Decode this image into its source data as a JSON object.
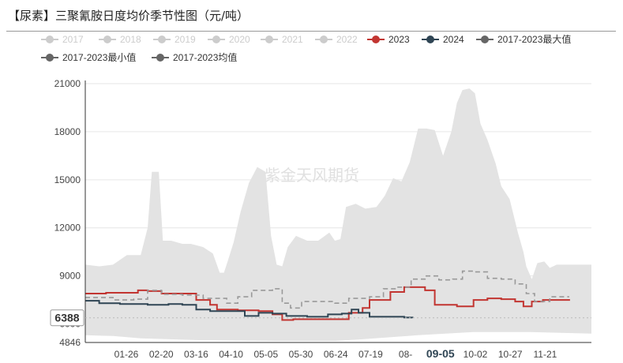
{
  "chart_data": {
    "type": "line",
    "title": "【尿素】三聚氰胺日度均价季节性图（元/吨）",
    "xlabel": "",
    "ylabel": "",
    "ylim": [
      4846,
      21000
    ],
    "y_ticks": [
      "4846",
      "6000",
      "9000",
      "12000",
      "15000",
      "18000",
      "21000"
    ],
    "x_tick_labels": [
      "01-26",
      "02-20",
      "03-16",
      "04-10",
      "05-05",
      "05-30",
      "06-24",
      "07-19",
      "08-",
      "09-05",
      "10-02",
      "10-27",
      "11-21"
    ],
    "x_axis_pointer": "09-05",
    "y_axis_pointer": "6388",
    "watermark": "紫金天风期货",
    "legend": [
      {
        "name": "2017",
        "color": "#cccccc",
        "style": "circle",
        "active": false
      },
      {
        "name": "2018",
        "color": "#cccccc",
        "style": "circle",
        "active": false
      },
      {
        "name": "2019",
        "color": "#cccccc",
        "style": "circle",
        "active": false
      },
      {
        "name": "2020",
        "color": "#cccccc",
        "style": "circle",
        "active": false
      },
      {
        "name": "2021",
        "color": "#cccccc",
        "style": "circle",
        "active": false
      },
      {
        "name": "2022",
        "color": "#cccccc",
        "style": "circle",
        "active": false
      },
      {
        "name": "2023",
        "color": "#c23531",
        "style": "circle",
        "active": true
      },
      {
        "name": "2024",
        "color": "#2f4554",
        "style": "circle",
        "active": true
      },
      {
        "name": "2017-2023最大值",
        "color": "#666666",
        "style": "circle",
        "active": true
      },
      {
        "name": "2017-2023最小值",
        "color": "#666666",
        "style": "circle",
        "active": true
      },
      {
        "name": "2017-2023均值",
        "color": "#666666",
        "style": "circle",
        "active": true
      }
    ],
    "x_range_days": [
      0,
      365
    ],
    "band_max": [
      [
        0,
        9700
      ],
      [
        10,
        9600
      ],
      [
        20,
        9700
      ],
      [
        30,
        10300
      ],
      [
        40,
        10300
      ],
      [
        45,
        12000
      ],
      [
        48,
        15500
      ],
      [
        53,
        15500
      ],
      [
        56,
        11200
      ],
      [
        62,
        11200
      ],
      [
        70,
        11000
      ],
      [
        76,
        11000
      ],
      [
        85,
        10800
      ],
      [
        92,
        10400
      ],
      [
        97,
        9200
      ],
      [
        100,
        9200
      ],
      [
        103,
        10000
      ],
      [
        107,
        11100
      ],
      [
        112,
        13000
      ],
      [
        118,
        14800
      ],
      [
        124,
        15800
      ],
      [
        130,
        15500
      ],
      [
        134,
        11500
      ],
      [
        138,
        9700
      ],
      [
        142,
        9600
      ],
      [
        146,
        10800
      ],
      [
        152,
        11500
      ],
      [
        160,
        11200
      ],
      [
        168,
        11200
      ],
      [
        176,
        11700
      ],
      [
        180,
        11200
      ],
      [
        184,
        11300
      ],
      [
        188,
        13300
      ],
      [
        195,
        13500
      ],
      [
        202,
        13200
      ],
      [
        210,
        13300
      ],
      [
        216,
        14000
      ],
      [
        222,
        15100
      ],
      [
        228,
        14900
      ],
      [
        234,
        16100
      ],
      [
        240,
        18200
      ],
      [
        246,
        18200
      ],
      [
        252,
        18100
      ],
      [
        258,
        16500
      ],
      [
        264,
        18000
      ],
      [
        268,
        19800
      ],
      [
        272,
        20600
      ],
      [
        277,
        20700
      ],
      [
        281,
        20400
      ],
      [
        285,
        18500
      ],
      [
        290,
        17500
      ],
      [
        296,
        16000
      ],
      [
        300,
        14600
      ],
      [
        306,
        13800
      ],
      [
        312,
        11700
      ],
      [
        316,
        10500
      ],
      [
        318,
        9600
      ],
      [
        322,
        8800
      ],
      [
        326,
        9800
      ],
      [
        331,
        9900
      ],
      [
        335,
        9500
      ],
      [
        340,
        9700
      ],
      [
        350,
        9700
      ],
      [
        365,
        9700
      ]
    ],
    "band_min": [
      [
        0,
        5300
      ],
      [
        20,
        5250
      ],
      [
        40,
        5100
      ],
      [
        80,
        5000
      ],
      [
        140,
        4946
      ],
      [
        180,
        4946
      ],
      [
        200,
        5050
      ],
      [
        240,
        5300
      ],
      [
        280,
        5500
      ],
      [
        320,
        5500
      ],
      [
        365,
        5400
      ]
    ],
    "series": [
      {
        "name": "2023",
        "color": "#c23531",
        "dash": false,
        "points": [
          [
            0,
            7900
          ],
          [
            15,
            7950
          ],
          [
            25,
            7950
          ],
          [
            38,
            8100
          ],
          [
            45,
            8050
          ],
          [
            55,
            7900
          ],
          [
            70,
            7900
          ],
          [
            80,
            7500
          ],
          [
            90,
            7200
          ],
          [
            95,
            6900
          ],
          [
            110,
            6850
          ],
          [
            125,
            6800
          ],
          [
            135,
            6600
          ],
          [
            142,
            6250
          ],
          [
            150,
            6300
          ],
          [
            160,
            6300
          ],
          [
            180,
            6300
          ],
          [
            190,
            6700
          ],
          [
            200,
            7000
          ],
          [
            205,
            7500
          ],
          [
            212,
            7500
          ],
          [
            220,
            8000
          ],
          [
            230,
            8300
          ],
          [
            238,
            8300
          ],
          [
            245,
            8100
          ],
          [
            252,
            7200
          ],
          [
            260,
            7200
          ],
          [
            268,
            7100
          ],
          [
            280,
            7500
          ],
          [
            290,
            7600
          ],
          [
            300,
            7550
          ],
          [
            310,
            7400
          ],
          [
            316,
            7100
          ],
          [
            322,
            7400
          ],
          [
            330,
            7500
          ],
          [
            340,
            7500
          ],
          [
            349,
            7550
          ]
        ]
      },
      {
        "name": "2024",
        "color": "#2f4554",
        "dash": false,
        "points": [
          [
            0,
            7450
          ],
          [
            10,
            7300
          ],
          [
            25,
            7250
          ],
          [
            45,
            7200
          ],
          [
            60,
            7250
          ],
          [
            70,
            7200
          ],
          [
            80,
            6900
          ],
          [
            90,
            6800
          ],
          [
            105,
            6800
          ],
          [
            115,
            6500
          ],
          [
            125,
            6700
          ],
          [
            135,
            6650
          ],
          [
            145,
            6500
          ],
          [
            160,
            6450
          ],
          [
            175,
            6600
          ],
          [
            185,
            6650
          ],
          [
            192,
            6900
          ],
          [
            197,
            6700
          ],
          [
            205,
            6450
          ],
          [
            220,
            6450
          ],
          [
            230,
            6400
          ],
          [
            236,
            6388
          ]
        ]
      },
      {
        "name": "2017-2023均值",
        "color": "#999999",
        "dash": true,
        "points": [
          [
            0,
            7650
          ],
          [
            20,
            7500
          ],
          [
            35,
            7550
          ],
          [
            45,
            8100
          ],
          [
            55,
            7850
          ],
          [
            70,
            7800
          ],
          [
            85,
            7600
          ],
          [
            95,
            7600
          ],
          [
            102,
            7300
          ],
          [
            110,
            7700
          ],
          [
            120,
            8100
          ],
          [
            135,
            8200
          ],
          [
            142,
            7300
          ],
          [
            148,
            7000
          ],
          [
            156,
            7400
          ],
          [
            168,
            7400
          ],
          [
            180,
            7300
          ],
          [
            190,
            7600
          ],
          [
            205,
            7700
          ],
          [
            215,
            8200
          ],
          [
            225,
            8300
          ],
          [
            235,
            8800
          ],
          [
            245,
            9000
          ],
          [
            255,
            8750
          ],
          [
            265,
            8800
          ],
          [
            272,
            9300
          ],
          [
            280,
            9250
          ],
          [
            290,
            8850
          ],
          [
            300,
            8800
          ],
          [
            310,
            8500
          ],
          [
            318,
            7900
          ],
          [
            324,
            7400
          ],
          [
            335,
            7700
          ],
          [
            349,
            7700
          ]
        ]
      }
    ]
  }
}
